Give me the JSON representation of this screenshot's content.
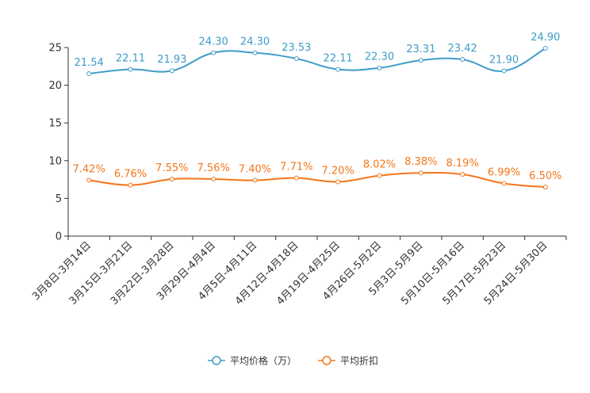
{
  "chart_data": {
    "type": "line",
    "title": "",
    "xlabel": "",
    "ylabel": "",
    "ylim": [
      0,
      25
    ],
    "yticks": [
      0,
      5,
      10,
      15,
      20,
      25
    ],
    "categories": [
      "3月8日-3月14日",
      "3月15日-3月21日",
      "3月22日-3月28日",
      "3月29日-4月4日",
      "4月5日-4月11日",
      "4月12日-4月18日",
      "4月19日-4月25日",
      "4月26日-5月2日",
      "5月3日-5月9日",
      "5月10日-5月16日",
      "5月17日-5月23日",
      "5月24日-5月30日"
    ],
    "series": [
      {
        "name": "平均价格（万）",
        "color": "#3e9cc9",
        "values": [
          21.54,
          22.11,
          21.93,
          24.3,
          24.3,
          23.53,
          22.11,
          22.3,
          23.31,
          23.42,
          21.9,
          24.9
        ],
        "labels": [
          "21.54",
          "22.11",
          "21.93",
          "24.30",
          "24.30",
          "23.53",
          "22.11",
          "22.30",
          "23.31",
          "23.42",
          "21.90",
          "24.90"
        ]
      },
      {
        "name": "平均折扣",
        "color": "#f5761a",
        "values": [
          7.42,
          6.76,
          7.55,
          7.56,
          7.4,
          7.71,
          7.2,
          8.02,
          8.38,
          8.19,
          6.99,
          6.5
        ],
        "labels": [
          "7.42%",
          "6.76%",
          "7.55%",
          "7.56%",
          "7.40%",
          "7.71%",
          "7.20%",
          "8.02%",
          "8.38%",
          "8.19%",
          "6.99%",
          "6.50%"
        ]
      }
    ],
    "legend": "bottom-center",
    "grid": false
  }
}
